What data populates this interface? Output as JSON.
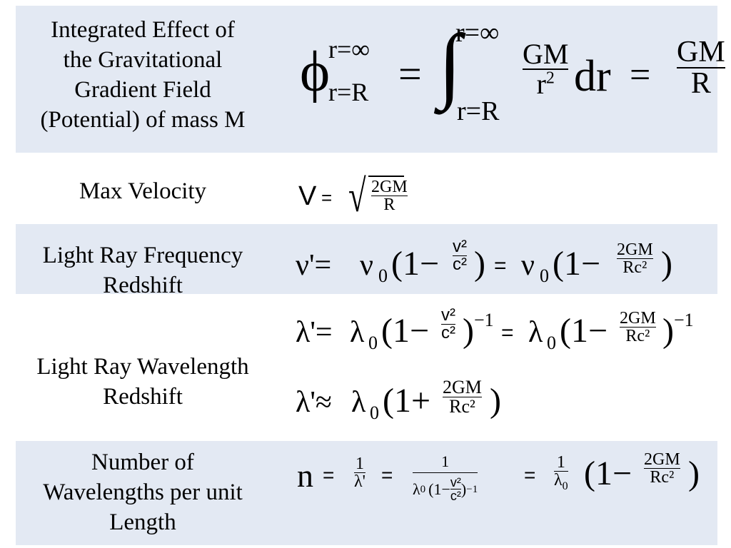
{
  "rows": [
    {
      "label": [
        "Integrated Effect of",
        "the Gravitational",
        "Gradient Field",
        "(Potential) of mass M"
      ]
    },
    {
      "label": [
        "Max Velocity"
      ]
    },
    {
      "label": [
        "Light Ray Frequency",
        "Redshift"
      ]
    },
    {
      "label": [
        "Light Ray Wavelength",
        "Redshift"
      ]
    },
    {
      "label": [
        "Number of",
        "Wavelengths per unit",
        "Length"
      ]
    }
  ],
  "eq": {
    "potential": {
      "phi": "ϕ",
      "upper": "r=∞",
      "lower": "r=R",
      "equals": "=",
      "integral": "∫",
      "int_upper": "r=∞",
      "int_lower": "r=R",
      "num": "GM",
      "den_base": "r",
      "den_exp": "2",
      "dr": "dr",
      "equals2": "=",
      "res_num": "GM",
      "res_den": "R"
    },
    "velocity": {
      "v": "V",
      "equals": "=",
      "radical": "√",
      "num": "2GM",
      "den": "R"
    },
    "frequency": {
      "lhs": "ν'=",
      "nu0": "ν",
      "sub0": "0",
      "open": "(1−",
      "v2": "v²",
      "c2": "c²",
      "close": ")",
      "equals": "=",
      "nu0b": "ν",
      "sub0b": "0",
      "open2": "(1−",
      "num": "2GM",
      "den": "Rc²",
      "close2": ")"
    },
    "wavelength": {
      "lhs": "λ'=",
      "lam": "λ",
      "sub0": "0",
      "open": "(1−",
      "v2": "v²",
      "c2": "c²",
      "close": ")",
      "exp": "−1",
      "equals": "=",
      "lamb": "λ",
      "sub0b": "0",
      "open2": "(1−",
      "num": "2GM",
      "den": "Rc²",
      "close2": ")",
      "exp2": "−1",
      "approx_lhs": "λ'≈",
      "lam3": "λ",
      "sub03": "0",
      "open3": "(1+",
      "num3": "2GM",
      "den3": "Rc²",
      "close3": ")"
    },
    "number": {
      "n": "n",
      "equals": "=",
      "f1_num": "1",
      "f1_den": "λ'",
      "equals2": "=",
      "f2_num": "1",
      "f2_den_a": "λ",
      "f2_den_sub": "0",
      "f2_den_b": "(1−",
      "f2_v2": "v²",
      "f2_c2": "c²",
      "f2_den_c": ")",
      "f2_exp": "−1",
      "equals3": "=",
      "f3_num": "1",
      "f3_den": "λ",
      "f3_den_sub": "0",
      "open": "(1−",
      "num": "2GM",
      "den": "Rc²",
      "close": ")"
    }
  }
}
